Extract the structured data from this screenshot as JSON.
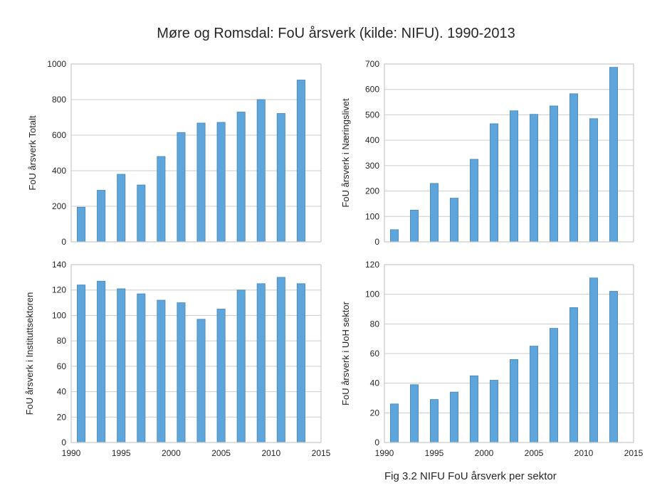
{
  "title": "Møre og Romsdal: FoU årsverk (kilde: NIFU). 1990-2013",
  "caption": "Fig 3.2 NIFU FoU årsverk per sektor",
  "colors": {
    "bar": "#5DA5DA",
    "bar_edge": "#4a86b5",
    "grid": "#cccccc",
    "frame": "#c8c8c8"
  },
  "chart_data": [
    {
      "type": "bar",
      "ylabel": "FoU årsverk Totalt",
      "xlim": [
        1990,
        2015
      ],
      "ylim": [
        0,
        1000
      ],
      "yticks": [
        0,
        200,
        400,
        600,
        800,
        1000
      ],
      "xticks": [],
      "x": [
        1991,
        1993,
        1995,
        1997,
        1999,
        2001,
        2003,
        2005,
        2007,
        2009,
        2011,
        2013
      ],
      "values": [
        195,
        290,
        380,
        320,
        480,
        615,
        668,
        672,
        730,
        800,
        722,
        910
      ],
      "grid": true
    },
    {
      "type": "bar",
      "ylabel": "FoU årsverk i Næringslivet",
      "xlim": [
        1990,
        2015
      ],
      "ylim": [
        0,
        700
      ],
      "yticks": [
        0,
        100,
        200,
        300,
        400,
        500,
        600,
        700
      ],
      "xticks": [],
      "x": [
        1991,
        1993,
        1995,
        1997,
        1999,
        2001,
        2003,
        2005,
        2007,
        2009,
        2011,
        2013
      ],
      "values": [
        48,
        125,
        230,
        172,
        325,
        465,
        516,
        502,
        535,
        583,
        485,
        687
      ],
      "grid": true
    },
    {
      "type": "bar",
      "ylabel": "FoU årsverk i Instituttsektoren",
      "xlim": [
        1990,
        2015
      ],
      "ylim": [
        0,
        140
      ],
      "yticks": [
        0,
        20,
        40,
        60,
        80,
        100,
        120,
        140
      ],
      "xticks": [
        1990,
        1995,
        2000,
        2005,
        2010,
        2015
      ],
      "x": [
        1991,
        1993,
        1995,
        1997,
        1999,
        2001,
        2003,
        2005,
        2007,
        2009,
        2011,
        2013
      ],
      "values": [
        124,
        127,
        121,
        117,
        112,
        110,
        97,
        105,
        120,
        125,
        130,
        125
      ],
      "grid": true
    },
    {
      "type": "bar",
      "ylabel": "FoU årsverk i UoH sektor",
      "xlim": [
        1990,
        2015
      ],
      "ylim": [
        0,
        120
      ],
      "yticks": [
        0,
        20,
        40,
        60,
        80,
        100,
        120
      ],
      "xticks": [
        1990,
        1995,
        2000,
        2005,
        2010,
        2015
      ],
      "x": [
        1991,
        1993,
        1995,
        1997,
        1999,
        2001,
        2003,
        2005,
        2007,
        2009,
        2011,
        2013
      ],
      "values": [
        26,
        39,
        29,
        34,
        45,
        42,
        56,
        65,
        77,
        91,
        111,
        102
      ],
      "grid": true
    }
  ]
}
